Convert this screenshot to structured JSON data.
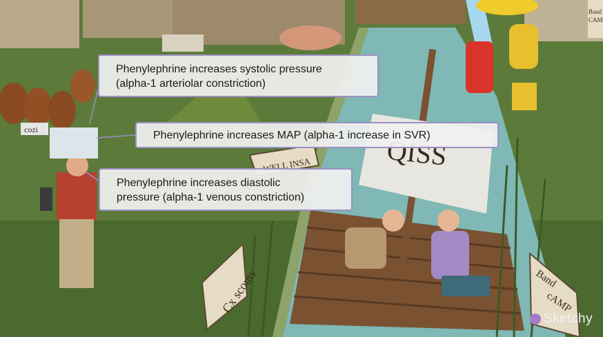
{
  "callouts": [
    {
      "line1": "Phenylephrine increases systolic pressure",
      "line2": "(alpha-1 arteriolar constriction)"
    },
    {
      "line1": "Phenylephrine increases MAP (alpha-1 increase in SVR)"
    },
    {
      "line1": "Phenylephrine increases diastolic",
      "line2": "pressure (alpha-1 venous constriction)"
    }
  ],
  "scene": {
    "sail_text": "QISS",
    "sign_left": "Cx scouts",
    "sign_right_1": "Band",
    "sign_right_2": "cAMP",
    "sign_top_right_1": "Band",
    "sign_top_right_2": "CAMP",
    "sign_small": "WELL INSA",
    "dog_collar": "cozi",
    "logo": "Sketchy"
  },
  "colors": {
    "grass": "#5c7a3a",
    "water": "#7fb8b4",
    "callout_border": "#9b8fc4",
    "raft": "#7a5232"
  }
}
